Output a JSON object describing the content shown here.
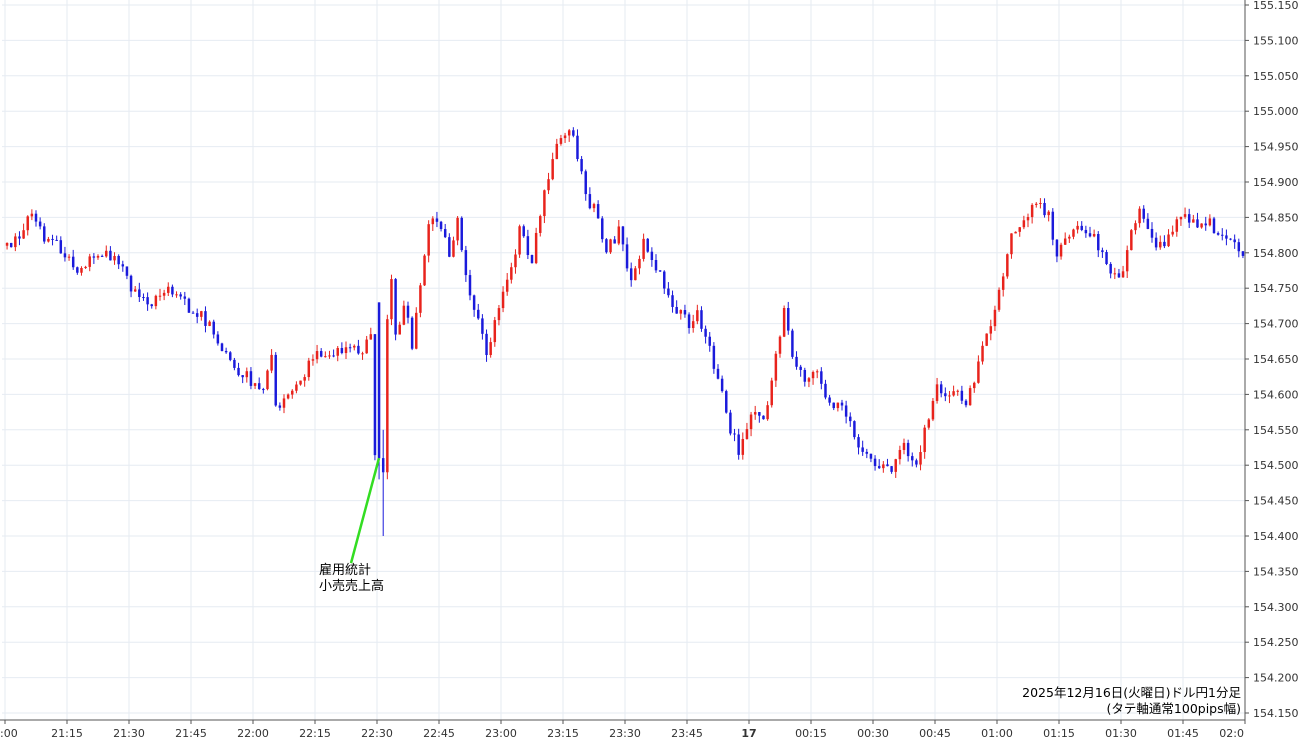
{
  "chart_data": {
    "type": "candlestick",
    "title": "2025年12月16日(火曜日)ドル円1分足",
    "subtitle": "(タテ軸通常100pips幅)",
    "y_range": [
      154.15,
      155.15
    ],
    "y_ticks": [
      "155.150",
      "155.100",
      "155.050",
      "155.000",
      "154.950",
      "154.900",
      "154.850",
      "154.800",
      "154.750",
      "154.700",
      "154.650",
      "154.600",
      "154.550",
      "154.500",
      "154.450",
      "154.400",
      "154.350",
      "154.300",
      "154.250",
      "154.200",
      "154.150"
    ],
    "x_range": [
      "21:00",
      "02:00"
    ],
    "x_ticks": [
      {
        "label": ":00",
        "t": "21:00"
      },
      {
        "label": "21:15",
        "t": "21:15"
      },
      {
        "label": "21:30",
        "t": "21:30"
      },
      {
        "label": "21:45",
        "t": "21:45"
      },
      {
        "label": "22:00",
        "t": "22:00"
      },
      {
        "label": "22:15",
        "t": "22:15"
      },
      {
        "label": "22:30",
        "t": "22:30"
      },
      {
        "label": "22:45",
        "t": "22:45"
      },
      {
        "label": "23:00",
        "t": "23:00"
      },
      {
        "label": "23:15",
        "t": "23:15"
      },
      {
        "label": "23:30",
        "t": "23:30"
      },
      {
        "label": "23:45",
        "t": "23:45"
      },
      {
        "label": "17",
        "t": "00:00",
        "bold": true
      },
      {
        "label": "00:15",
        "t": "00:15"
      },
      {
        "label": "00:30",
        "t": "00:30"
      },
      {
        "label": "00:45",
        "t": "00:45"
      },
      {
        "label": "01:00",
        "t": "01:00"
      },
      {
        "label": "01:15",
        "t": "01:15"
      },
      {
        "label": "01:30",
        "t": "01:30"
      },
      {
        "label": "01:45",
        "t": "01:45"
      },
      {
        "label": "02:0",
        "t": "02:00"
      }
    ],
    "grid": true,
    "up_color": "#e8231c",
    "down_color": "#1a1adb",
    "annotation": {
      "lines": [
        "雇用統計",
        "小売売上高"
      ],
      "time": "22:30",
      "price": 154.51,
      "arrow_color": "#33dd22"
    },
    "price_path": [
      [
        "21:00",
        154.81
      ],
      [
        "21:03",
        154.82
      ],
      [
        "21:07",
        154.85
      ],
      [
        "21:10",
        154.82
      ],
      [
        "21:12",
        154.82
      ],
      [
        "21:15",
        154.8
      ],
      [
        "21:18",
        154.78
      ],
      [
        "21:22",
        154.79
      ],
      [
        "21:27",
        154.8
      ],
      [
        "21:30",
        154.76
      ],
      [
        "21:35",
        154.73
      ],
      [
        "21:38",
        154.74
      ],
      [
        "21:42",
        154.75
      ],
      [
        "21:45",
        154.72
      ],
      [
        "21:48",
        154.71
      ],
      [
        "21:52",
        154.68
      ],
      [
        "21:56",
        154.64
      ],
      [
        "22:00",
        154.62
      ],
      [
        "22:03",
        154.6
      ],
      [
        "22:05",
        154.65
      ],
      [
        "22:06",
        154.58
      ],
      [
        "22:08",
        154.59
      ],
      [
        "22:11",
        154.61
      ],
      [
        "22:14",
        154.64
      ],
      [
        "22:17",
        154.66
      ],
      [
        "22:20",
        154.65
      ],
      [
        "22:23",
        154.67
      ],
      [
        "22:27",
        154.66
      ],
      [
        "22:29",
        154.69
      ],
      [
        "22:30",
        154.51
      ],
      [
        "22:31",
        154.48
      ],
      [
        "22:32",
        154.55
      ],
      [
        "22:33",
        154.71
      ],
      [
        "22:34",
        154.77
      ],
      [
        "22:35",
        154.68
      ],
      [
        "22:37",
        154.73
      ],
      [
        "22:39",
        154.67
      ],
      [
        "22:41",
        154.75
      ],
      [
        "22:43",
        154.84
      ],
      [
        "22:45",
        154.85
      ],
      [
        "22:48",
        154.8
      ],
      [
        "22:50",
        154.85
      ],
      [
        "22:52",
        154.76
      ],
      [
        "22:55",
        154.7
      ],
      [
        "22:57",
        154.66
      ],
      [
        "23:00",
        154.72
      ],
      [
        "23:03",
        154.78
      ],
      [
        "23:05",
        154.83
      ],
      [
        "23:08",
        154.79
      ],
      [
        "23:11",
        154.88
      ],
      [
        "23:14",
        154.95
      ],
      [
        "23:17",
        154.98
      ],
      [
        "23:19",
        154.94
      ],
      [
        "23:21",
        154.88
      ],
      [
        "23:23",
        154.86
      ],
      [
        "23:26",
        154.8
      ],
      [
        "23:29",
        154.83
      ],
      [
        "23:32",
        154.76
      ],
      [
        "23:35",
        154.82
      ],
      [
        "23:38",
        154.78
      ],
      [
        "23:40",
        154.75
      ],
      [
        "23:43",
        154.72
      ],
      [
        "23:46",
        154.7
      ],
      [
        "23:48",
        154.72
      ],
      [
        "23:50",
        154.68
      ],
      [
        "23:53",
        154.62
      ],
      [
        "23:56",
        154.55
      ],
      [
        "23:58",
        154.52
      ],
      [
        "00:01",
        154.57
      ],
      [
        "00:04",
        154.56
      ],
      [
        "00:07",
        154.65
      ],
      [
        "00:09",
        154.72
      ],
      [
        "00:11",
        154.66
      ],
      [
        "00:14",
        154.62
      ],
      [
        "00:17",
        154.63
      ],
      [
        "00:20",
        154.58
      ],
      [
        "00:23",
        154.58
      ],
      [
        "00:26",
        154.54
      ],
      [
        "00:29",
        154.52
      ],
      [
        "00:32",
        154.5
      ],
      [
        "00:35",
        154.49
      ],
      [
        "00:38",
        154.53
      ],
      [
        "00:41",
        154.5
      ],
      [
        "00:43",
        154.55
      ],
      [
        "00:46",
        154.61
      ],
      [
        "00:50",
        154.6
      ],
      [
        "00:53",
        154.59
      ],
      [
        "00:56",
        154.64
      ],
      [
        "00:59",
        154.7
      ],
      [
        "01:01",
        154.75
      ],
      [
        "01:04",
        154.82
      ],
      [
        "01:07",
        154.85
      ],
      [
        "01:09",
        154.86
      ],
      [
        "01:11",
        154.87
      ],
      [
        "01:13",
        154.85
      ],
      [
        "01:15",
        154.8
      ],
      [
        "01:18",
        154.83
      ],
      [
        "01:21",
        154.83
      ],
      [
        "01:24",
        154.82
      ],
      [
        "01:27",
        154.78
      ],
      [
        "01:30",
        154.76
      ],
      [
        "01:32",
        154.8
      ],
      [
        "01:35",
        154.87
      ],
      [
        "01:38",
        154.82
      ],
      [
        "01:40",
        154.81
      ],
      [
        "01:43",
        154.83
      ],
      [
        "01:46",
        154.86
      ],
      [
        "01:49",
        154.83
      ],
      [
        "01:52",
        154.84
      ],
      [
        "01:55",
        154.83
      ],
      [
        "01:58",
        154.82
      ],
      [
        "02:00",
        154.8
      ]
    ]
  }
}
